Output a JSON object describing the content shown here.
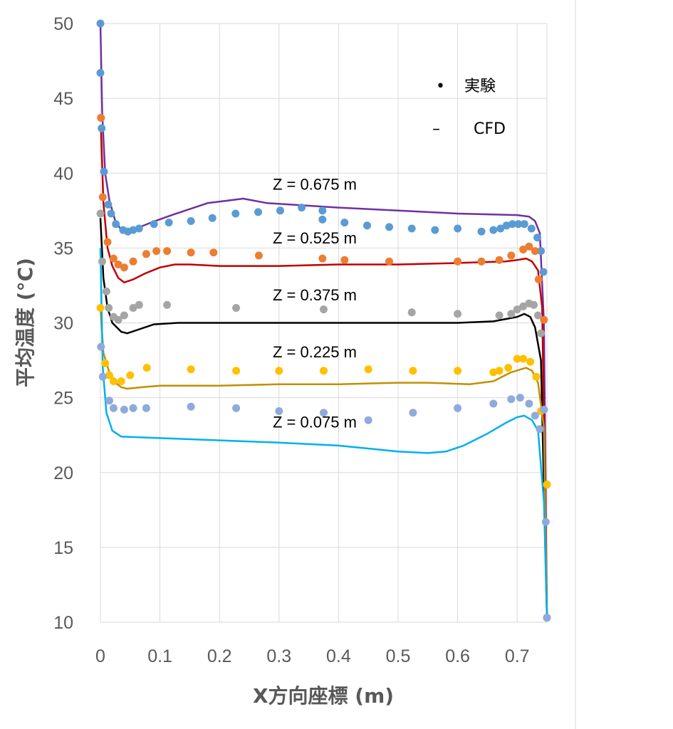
{
  "chart_data": {
    "type": "scatter",
    "xlabel": "X方向座標 (m)",
    "ylabel": "平均温度 (°C)",
    "xlim": [
      0,
      0.75
    ],
    "ylim": [
      10,
      50
    ],
    "xticks": [
      "0",
      "0.1",
      "0.2",
      "0.3",
      "0.4",
      "0.5",
      "0.6",
      "0.7"
    ],
    "yticks": [
      "10",
      "15",
      "20",
      "25",
      "30",
      "35",
      "40",
      "45",
      "50"
    ],
    "grid": true,
    "legend": {
      "position": "top-right",
      "entries": [
        {
          "marker": "•",
          "text": "実験"
        },
        {
          "marker": "–",
          "text": "CFD"
        }
      ]
    },
    "series": [
      {
        "name": "Z = 0.675 m",
        "label_at": [
          0.36,
          38.9
        ],
        "exp_color": "#5b9bd5",
        "cfd_color": "#7030a0",
        "exp": [
          [
            0,
            50
          ],
          [
            0,
            46.7
          ],
          [
            0.001,
            43.7
          ],
          [
            0.002,
            43.0
          ],
          [
            0.006,
            40.1
          ],
          [
            0.013,
            37.9
          ],
          [
            0.018,
            37.3
          ],
          [
            0.026,
            36.6
          ],
          [
            0.038,
            36.2
          ],
          [
            0.046,
            36.1
          ],
          [
            0.055,
            36.2
          ],
          [
            0.065,
            36.3
          ],
          [
            0.09,
            36.6
          ],
          [
            0.115,
            36.7
          ],
          [
            0.152,
            36.8
          ],
          [
            0.188,
            37.0
          ],
          [
            0.227,
            37.3
          ],
          [
            0.265,
            37.4
          ],
          [
            0.302,
            37.5
          ],
          [
            0.338,
            37.7
          ],
          [
            0.373,
            37.5
          ],
          [
            0.373,
            36.9
          ],
          [
            0.41,
            36.7
          ],
          [
            0.448,
            36.5
          ],
          [
            0.485,
            36.4
          ],
          [
            0.523,
            36.3
          ],
          [
            0.562,
            36.2
          ],
          [
            0.6,
            36.3
          ],
          [
            0.64,
            36.1
          ],
          [
            0.66,
            36.2
          ],
          [
            0.672,
            36.3
          ],
          [
            0.682,
            36.5
          ],
          [
            0.692,
            36.6
          ],
          [
            0.702,
            36.6
          ],
          [
            0.712,
            36.6
          ],
          [
            0.724,
            36.3
          ],
          [
            0.734,
            35.7
          ],
          [
            0.74,
            34.8
          ],
          [
            0.744,
            33.4
          ],
          [
            0.75,
            10.3
          ]
        ],
        "cfd": [
          [
            0,
            50
          ],
          [
            0.003,
            44
          ],
          [
            0.008,
            40
          ],
          [
            0.015,
            38.2
          ],
          [
            0.025,
            36.8
          ],
          [
            0.035,
            36.2
          ],
          [
            0.045,
            36.0
          ],
          [
            0.06,
            36.3
          ],
          [
            0.085,
            36.7
          ],
          [
            0.12,
            37.2
          ],
          [
            0.15,
            37.6
          ],
          [
            0.18,
            38.0
          ],
          [
            0.22,
            38.2
          ],
          [
            0.24,
            38.3
          ],
          [
            0.28,
            38.0
          ],
          [
            0.4,
            37.7
          ],
          [
            0.5,
            37.5
          ],
          [
            0.6,
            37.3
          ],
          [
            0.7,
            37.2
          ],
          [
            0.72,
            37.1
          ],
          [
            0.73,
            36.8
          ],
          [
            0.738,
            36.0
          ],
          [
            0.745,
            30
          ],
          [
            0.75,
            10.3
          ]
        ]
      },
      {
        "name": "Z = 0.525 m",
        "label_at": [
          0.36,
          35.3
        ],
        "exp_color": "#ed7d31",
        "cfd_color": "#c00000",
        "exp": [
          [
            0.001,
            43.7
          ],
          [
            0.004,
            38.4
          ],
          [
            0.012,
            35.4
          ],
          [
            0.022,
            34.3
          ],
          [
            0.03,
            33.9
          ],
          [
            0.04,
            33.7
          ],
          [
            0.055,
            34.1
          ],
          [
            0.077,
            34.6
          ],
          [
            0.094,
            34.8
          ],
          [
            0.112,
            34.8
          ],
          [
            0.152,
            34.7
          ],
          [
            0.19,
            34.7
          ],
          [
            0.266,
            34.5
          ],
          [
            0.373,
            34.3
          ],
          [
            0.41,
            34.2
          ],
          [
            0.485,
            34.1
          ],
          [
            0.6,
            34.1
          ],
          [
            0.64,
            34.1
          ],
          [
            0.67,
            34.2
          ],
          [
            0.69,
            34.5
          ],
          [
            0.71,
            34.9
          ],
          [
            0.72,
            35.1
          ],
          [
            0.73,
            34.8
          ],
          [
            0.736,
            32.9
          ],
          [
            0.745,
            30.2
          ],
          [
            0.75,
            19.2
          ]
        ],
        "cfd": [
          [
            0.001,
            43
          ],
          [
            0.005,
            38
          ],
          [
            0.012,
            35
          ],
          [
            0.02,
            33.8
          ],
          [
            0.03,
            33.0
          ],
          [
            0.04,
            32.7
          ],
          [
            0.055,
            32.9
          ],
          [
            0.075,
            33.3
          ],
          [
            0.1,
            33.7
          ],
          [
            0.125,
            33.9
          ],
          [
            0.15,
            33.9
          ],
          [
            0.2,
            33.8
          ],
          [
            0.3,
            33.8
          ],
          [
            0.4,
            33.9
          ],
          [
            0.5,
            33.9
          ],
          [
            0.6,
            34.0
          ],
          [
            0.68,
            34.1
          ],
          [
            0.7,
            34.2
          ],
          [
            0.715,
            34.3
          ],
          [
            0.725,
            34.1
          ],
          [
            0.735,
            33.5
          ],
          [
            0.742,
            31
          ],
          [
            0.75,
            10.3
          ]
        ]
      },
      {
        "name": "Z = 0.375 m",
        "label_at": [
          0.36,
          31.5
        ],
        "exp_color": "#a5a5a5",
        "cfd_color": "#000000",
        "exp": [
          [
            0,
            37.3
          ],
          [
            0.003,
            34.1
          ],
          [
            0.01,
            32.1
          ],
          [
            0.014,
            31.0
          ],
          [
            0.022,
            30.4
          ],
          [
            0.03,
            30.2
          ],
          [
            0.04,
            30.5
          ],
          [
            0.055,
            31.0
          ],
          [
            0.065,
            31.2
          ],
          [
            0.112,
            31.2
          ],
          [
            0.228,
            31.0
          ],
          [
            0.375,
            30.9
          ],
          [
            0.523,
            30.7
          ],
          [
            0.6,
            30.6
          ],
          [
            0.67,
            30.5
          ],
          [
            0.69,
            30.6
          ],
          [
            0.7,
            30.9
          ],
          [
            0.71,
            31.1
          ],
          [
            0.72,
            31.3
          ],
          [
            0.728,
            31.2
          ],
          [
            0.735,
            30.5
          ],
          [
            0.74,
            29.3
          ],
          [
            0.745,
            24.2
          ]
        ],
        "cfd": [
          [
            0,
            37
          ],
          [
            0.005,
            33
          ],
          [
            0.012,
            31.0
          ],
          [
            0.02,
            30.0
          ],
          [
            0.035,
            29.4
          ],
          [
            0.045,
            29.3
          ],
          [
            0.06,
            29.5
          ],
          [
            0.09,
            29.9
          ],
          [
            0.13,
            30.0
          ],
          [
            0.25,
            30.0
          ],
          [
            0.4,
            30.0
          ],
          [
            0.5,
            30.0
          ],
          [
            0.6,
            30.0
          ],
          [
            0.66,
            30.1
          ],
          [
            0.7,
            30.4
          ],
          [
            0.712,
            30.6
          ],
          [
            0.722,
            30.4
          ],
          [
            0.73,
            29.7
          ],
          [
            0.74,
            27.5
          ],
          [
            0.75,
            10.3
          ]
        ]
      },
      {
        "name": "Z = 0.225 m",
        "label_at": [
          0.36,
          27.7
        ],
        "exp_color": "#ffc000",
        "cfd_color": "#bf9000",
        "exp": [
          [
            0,
            31
          ],
          [
            0.008,
            27.3
          ],
          [
            0.015,
            26.5
          ],
          [
            0.022,
            26.1
          ],
          [
            0.035,
            26.1
          ],
          [
            0.05,
            26.5
          ],
          [
            0.078,
            27.0
          ],
          [
            0.152,
            26.9
          ],
          [
            0.228,
            26.8
          ],
          [
            0.3,
            26.8
          ],
          [
            0.375,
            26.8
          ],
          [
            0.45,
            26.9
          ],
          [
            0.525,
            26.8
          ],
          [
            0.6,
            26.8
          ],
          [
            0.66,
            26.7
          ],
          [
            0.67,
            26.8
          ],
          [
            0.685,
            27.0
          ],
          [
            0.7,
            27.6
          ],
          [
            0.71,
            27.6
          ],
          [
            0.722,
            27.4
          ],
          [
            0.732,
            26.4
          ],
          [
            0.74,
            24.1
          ],
          [
            0.75,
            19.2
          ]
        ],
        "cfd": [
          [
            0,
            31
          ],
          [
            0.005,
            28.0
          ],
          [
            0.015,
            26.7
          ],
          [
            0.025,
            26.0
          ],
          [
            0.035,
            25.7
          ],
          [
            0.045,
            25.6
          ],
          [
            0.07,
            25.7
          ],
          [
            0.1,
            25.8
          ],
          [
            0.2,
            25.8
          ],
          [
            0.3,
            25.9
          ],
          [
            0.4,
            25.9
          ],
          [
            0.5,
            26.0
          ],
          [
            0.55,
            26.0
          ],
          [
            0.62,
            25.9
          ],
          [
            0.66,
            26.1
          ],
          [
            0.69,
            26.7
          ],
          [
            0.715,
            27.0
          ],
          [
            0.725,
            26.8
          ],
          [
            0.735,
            26.0
          ],
          [
            0.745,
            23
          ],
          [
            0.75,
            10.3
          ]
        ]
      },
      {
        "name": "Z = 0.075 m",
        "label_at": [
          0.36,
          23.0
        ],
        "exp_color": "#8faadc",
        "cfd_color": "#00b0f0",
        "exp": [
          [
            0.001,
            28.4
          ],
          [
            0.004,
            26.4
          ],
          [
            0.015,
            24.8
          ],
          [
            0.022,
            24.3
          ],
          [
            0.04,
            24.2
          ],
          [
            0.055,
            24.3
          ],
          [
            0.077,
            24.3
          ],
          [
            0.152,
            24.4
          ],
          [
            0.228,
            24.3
          ],
          [
            0.3,
            24.1
          ],
          [
            0.375,
            24.0
          ],
          [
            0.45,
            23.5
          ],
          [
            0.525,
            24.0
          ],
          [
            0.6,
            24.3
          ],
          [
            0.66,
            24.6
          ],
          [
            0.69,
            24.9
          ],
          [
            0.705,
            25.0
          ],
          [
            0.72,
            24.6
          ],
          [
            0.73,
            23.8
          ],
          [
            0.738,
            22.9
          ],
          [
            0.745,
            24.2
          ],
          [
            0.748,
            16.7
          ],
          [
            0.75,
            10.3
          ]
        ],
        "cfd": [
          [
            0,
            35
          ],
          [
            0.004,
            27
          ],
          [
            0.01,
            24.0
          ],
          [
            0.02,
            22.8
          ],
          [
            0.035,
            22.4
          ],
          [
            0.1,
            22.3
          ],
          [
            0.3,
            22.0
          ],
          [
            0.4,
            21.8
          ],
          [
            0.5,
            21.4
          ],
          [
            0.55,
            21.3
          ],
          [
            0.58,
            21.4
          ],
          [
            0.61,
            21.8
          ],
          [
            0.65,
            22.6
          ],
          [
            0.68,
            23.3
          ],
          [
            0.7,
            23.7
          ],
          [
            0.712,
            23.8
          ],
          [
            0.725,
            23.5
          ],
          [
            0.735,
            22.8
          ],
          [
            0.745,
            18
          ],
          [
            0.75,
            10.3
          ]
        ]
      }
    ]
  }
}
